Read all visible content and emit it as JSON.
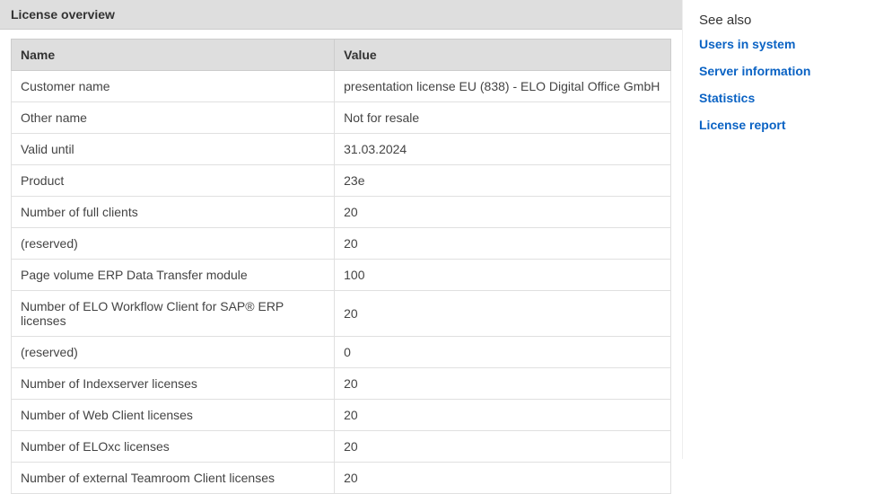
{
  "title": "License overview",
  "table": {
    "headers": {
      "name": "Name",
      "value": "Value"
    },
    "rows": [
      {
        "name": "Customer name",
        "value": "presentation license EU (838) - ELO Digital Office GmbH"
      },
      {
        "name": "Other name",
        "value": "Not for resale"
      },
      {
        "name": "Valid until",
        "value": "31.03.2024"
      },
      {
        "name": "Product",
        "value": "23e"
      },
      {
        "name": "Number of full clients",
        "value": "20"
      },
      {
        "name": "(reserved)",
        "value": "20"
      },
      {
        "name": "Page volume ERP Data Transfer module",
        "value": "100"
      },
      {
        "name": "Number of ELO Workflow Client for SAP® ERP licenses",
        "value": "20"
      },
      {
        "name": "(reserved)",
        "value": "0"
      },
      {
        "name": "Number of Indexserver licenses",
        "value": "20"
      },
      {
        "name": "Number of Web Client licenses",
        "value": "20"
      },
      {
        "name": "Number of ELOxc licenses",
        "value": "20"
      },
      {
        "name": "Number of external Teamroom Client licenses",
        "value": "20"
      }
    ]
  },
  "sidebar": {
    "heading": "See also",
    "links": [
      {
        "label": "Users in system"
      },
      {
        "label": "Server information"
      },
      {
        "label": "Statistics"
      },
      {
        "label": "License report"
      }
    ]
  },
  "colors": {
    "header_bg": "#dedede",
    "border": "#cccccc",
    "row_border": "#e0e0e0",
    "link": "#0b63c4",
    "text": "#333333"
  }
}
